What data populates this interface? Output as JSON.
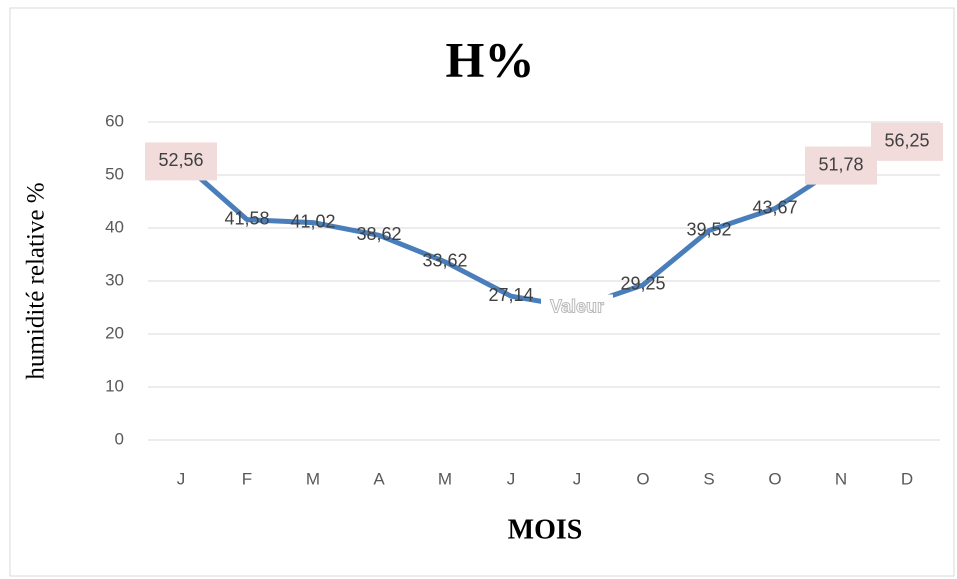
{
  "chart_data": {
    "type": "line",
    "title": "H%",
    "x_label": "MOIS",
    "y_label": "humidité relative %",
    "categories": [
      "J",
      "F",
      "M",
      "A",
      "M",
      "J",
      "J",
      "O",
      "S",
      "O",
      "N",
      "D"
    ],
    "series": [
      {
        "name": "Valeur",
        "color": "#4a7ebb",
        "values": [
          52.56,
          41.58,
          41.02,
          38.62,
          33.62,
          27.14,
          25,
          29.25,
          39.52,
          43.67,
          51.78,
          56.25
        ],
        "value_labels": [
          "52,56",
          "41,58",
          "41,02",
          "38,62",
          "33,62",
          "27,14",
          "Valeur",
          "29,25",
          "39,52",
          "43,67",
          "51,78",
          "56,25"
        ]
      }
    ],
    "highlighted_labels": [
      0,
      10,
      11
    ],
    "ylim": [
      0,
      60
    ],
    "yticks": [
      0,
      10,
      20,
      30,
      40,
      50,
      60
    ],
    "grid": true
  }
}
